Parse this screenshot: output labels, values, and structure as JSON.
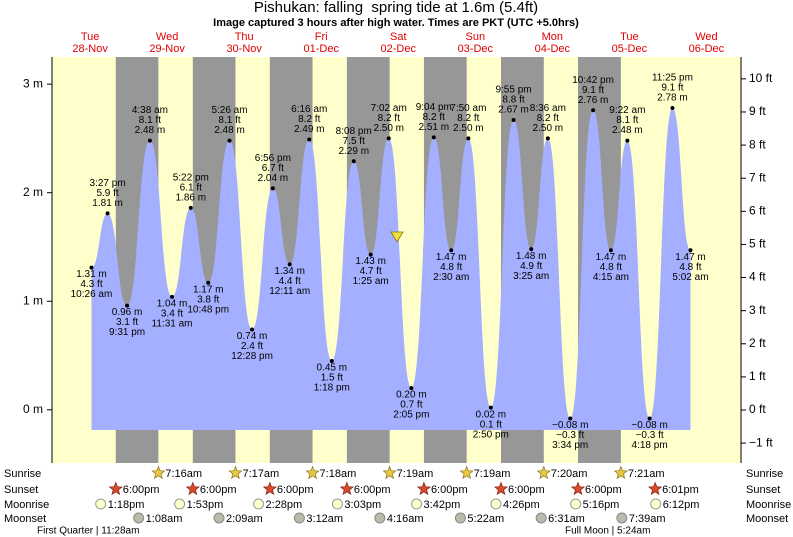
{
  "chart_data": {
    "type": "tide",
    "title": "Pishukan: falling  spring tide at 1.6m (5.4ft)",
    "subtitle": "Image captured 3 hours after high water. Times are PKT (UTC +5.0hrs)",
    "ylim": [
      -0.49,
      3.25
    ],
    "yticks": [
      {
        "value": 0,
        "label": "0 m"
      },
      {
        "value": 1,
        "label": "1 m"
      },
      {
        "value": 2,
        "label": "2 m"
      },
      {
        "value": 3,
        "label": "3 m"
      }
    ],
    "y2lim": [
      -1.6,
      10.66
    ],
    "y2ticks": [
      {
        "value": -1,
        "label": "−1 ft"
      },
      {
        "value": 0,
        "label": "0 ft"
      },
      {
        "value": 1,
        "label": "1 ft"
      },
      {
        "value": 2,
        "label": "2 ft"
      },
      {
        "value": 3,
        "label": "3 ft"
      },
      {
        "value": 4,
        "label": "4 ft"
      },
      {
        "value": 5,
        "label": "5 ft"
      },
      {
        "value": 6,
        "label": "6 ft"
      },
      {
        "value": 7,
        "label": "7 ft"
      },
      {
        "value": 8,
        "label": "8 ft"
      },
      {
        "value": 9,
        "label": "9 ft"
      },
      {
        "value": 10,
        "label": "10 ft"
      }
    ],
    "colors": {
      "area": "#a4b0ff",
      "day": "#ffffcc",
      "night": "#979797"
    },
    "row_labels": {
      "sunrise": "Sunrise",
      "sunset": "Sunset",
      "moonrise": "Moonrise",
      "moonset": "Moonset"
    },
    "days": [
      {
        "name": "Tue",
        "date": "28-Nov",
        "sunset": "6:00pm",
        "moonrise": "1:18pm",
        "tides": [
          {
            "time": "10:26 am",
            "height": 1.31,
            "height_label": "1.31 m",
            "feet_label": "4.3 ft"
          },
          {
            "time": "3:27 pm",
            "height": 1.81,
            "height_label": "1.81 m",
            "feet_label": "5.9 ft"
          },
          {
            "time": "9:31 pm",
            "height": 0.96,
            "height_label": "0.96 m",
            "feet_label": "3.1 ft"
          }
        ]
      },
      {
        "name": "Wed",
        "date": "29-Nov",
        "sunrise": "7:16am",
        "sunset": "6:00pm",
        "moonrise": "1:53pm",
        "moonset": "1:08am",
        "tides": [
          {
            "time": "4:38 am",
            "height": 2.48,
            "height_label": "2.48 m",
            "feet_label": "8.1 ft"
          },
          {
            "time": "11:31 am",
            "height": 1.04,
            "height_label": "1.04 m",
            "feet_label": "3.4 ft"
          },
          {
            "time": "5:22 pm",
            "height": 1.86,
            "height_label": "1.86 m",
            "feet_label": "6.1 ft"
          },
          {
            "time": "10:48 pm",
            "height": 1.17,
            "height_label": "1.17 m",
            "feet_label": "3.8 ft"
          }
        ]
      },
      {
        "name": "Thu",
        "date": "30-Nov",
        "sunrise": "7:17am",
        "sunset": "6:00pm",
        "moonrise": "2:28pm",
        "moonset": "2:09am",
        "tides": [
          {
            "time": "5:26 am",
            "height": 2.48,
            "height_label": "2.48 m",
            "feet_label": "8.1 ft"
          },
          {
            "time": "12:28 pm",
            "height": 0.74,
            "height_label": "0.74 m",
            "feet_label": "2.4 ft"
          },
          {
            "time": "6:56 pm",
            "height": 2.04,
            "height_label": "2.04 m",
            "feet_label": "6.7 ft"
          }
        ]
      },
      {
        "name": "Fri",
        "date": "01-Dec",
        "sunrise": "7:18am",
        "sunset": "6:00pm",
        "moonrise": "3:03pm",
        "moonset": "3:12am",
        "tides": [
          {
            "time": "12:11 am",
            "height": 1.34,
            "height_label": "1.34 m",
            "feet_label": "4.4 ft"
          },
          {
            "time": "6:16 am",
            "height": 2.49,
            "height_label": "2.49 m",
            "feet_label": "8.2 ft"
          },
          {
            "time": "1:18 pm",
            "height": 0.45,
            "height_label": "0.45 m",
            "feet_label": "1.5 ft"
          },
          {
            "time": "8:08 pm",
            "height": 2.29,
            "height_label": "2.29 m",
            "feet_label": "7.5 ft"
          }
        ]
      },
      {
        "name": "Sat",
        "date": "02-Dec",
        "sunrise": "7:19am",
        "sunset": "6:00pm",
        "moonrise": "3:42pm",
        "moonset": "4:16am",
        "tides": [
          {
            "time": "1:25 am",
            "height": 1.43,
            "height_label": "1.43 m",
            "feet_label": "4.7 ft"
          },
          {
            "time": "7:02 am",
            "height": 2.5,
            "height_label": "2.50 m",
            "feet_label": "8.2 ft"
          },
          {
            "time": "2:05 pm",
            "height": 0.2,
            "height_label": "0.20 m",
            "feet_label": "0.7 ft"
          },
          {
            "time": "9:04 pm",
            "height": 2.51,
            "height_label": "2.51 m",
            "feet_label": "8.2 ft"
          }
        ]
      },
      {
        "name": "Sun",
        "date": "03-Dec",
        "sunrise": "7:19am",
        "sunset": "6:00pm",
        "moonrise": "4:26pm",
        "moonset": "5:22am",
        "tides": [
          {
            "time": "2:30 am",
            "height": 1.47,
            "height_label": "1.47 m",
            "feet_label": "4.8 ft"
          },
          {
            "time": "7:50 am",
            "height": 2.5,
            "height_label": "2.50 m",
            "feet_label": "8.2 ft"
          },
          {
            "time": "2:50 pm",
            "height": 0.02,
            "height_label": "0.02 m",
            "feet_label": "0.1 ft"
          },
          {
            "time": "9:55 pm",
            "height": 2.67,
            "height_label": "2.67 m",
            "feet_label": "8.8 ft"
          }
        ]
      },
      {
        "name": "Mon",
        "date": "04-Dec",
        "sunrise": "7:20am",
        "sunset": "6:00pm",
        "moonrise": "5:16pm",
        "moonset": "6:31am",
        "tides": [
          {
            "time": "3:25 am",
            "height": 1.48,
            "height_label": "1.48 m",
            "feet_label": "4.9 ft"
          },
          {
            "time": "8:36 am",
            "height": 2.5,
            "height_label": "2.50 m",
            "feet_label": "8.2 ft"
          },
          {
            "time": "3:34 pm",
            "height": -0.08,
            "height_label": "−0.08 m",
            "feet_label": "−0.3 ft"
          },
          {
            "time": "10:42 pm",
            "height": 2.76,
            "height_label": "2.76 m",
            "feet_label": "9.1 ft"
          }
        ]
      },
      {
        "name": "Tue",
        "date": "05-Dec",
        "sunrise": "7:21am",
        "sunset": "6:01pm",
        "moonrise": "6:12pm",
        "moonset": "7:39am",
        "tides": [
          {
            "time": "4:15 am",
            "height": 1.47,
            "height_label": "1.47 m",
            "feet_label": "4.8 ft"
          },
          {
            "time": "9:22 am",
            "height": 2.48,
            "height_label": "2.48 m",
            "feet_label": "8.1 ft"
          },
          {
            "time": "4:18 pm",
            "height": -0.08,
            "height_label": "−0.08 m",
            "feet_label": "−0.3 ft"
          },
          {
            "time": "11:25 pm",
            "height": 2.78,
            "height_label": "2.78 m",
            "feet_label": "9.1 ft"
          }
        ]
      },
      {
        "name": "Wed",
        "date": "06-Dec",
        "tides": [
          {
            "time": "5:02 am",
            "height": 1.47,
            "height_label": "1.47 m",
            "feet_label": "4.8 ft"
          }
        ]
      }
    ],
    "moon_phases": [
      "First Quarter | 11:28am",
      "Full Moon | 5:24am"
    ]
  }
}
